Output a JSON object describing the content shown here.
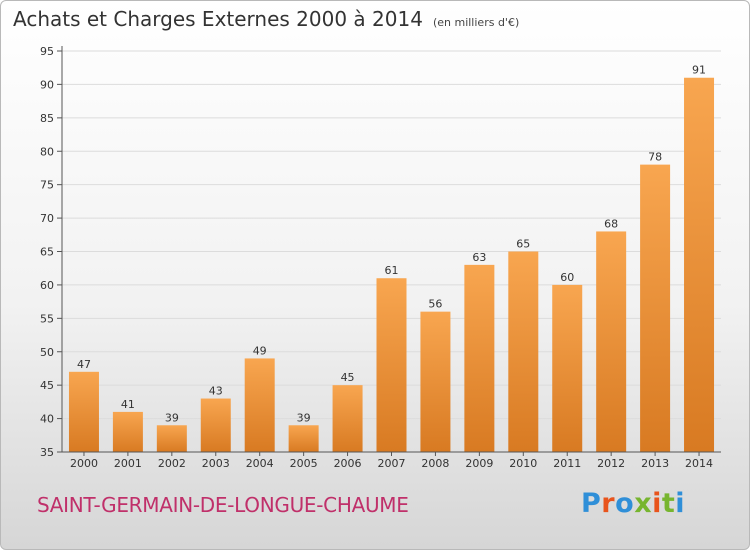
{
  "header": {
    "title": "Achats et Charges Externes 2000 à 2014",
    "unit": "(en milliers d'€)"
  },
  "footer": {
    "city": "SAINT-GERMAIN-DE-LONGUE-CHAUME",
    "logo": "Proxiti"
  },
  "colors": {
    "bar_light": "#f8a650",
    "bar_dark": "#d87a22",
    "city_text": "#c0306a",
    "logo_letters": [
      "#2f8fd8",
      "#e8541c",
      "#2f8fd8",
      "#77b52f",
      "#e8541c",
      "#77b52f",
      "#2f8fd8"
    ]
  },
  "chart_data": {
    "type": "bar",
    "title": "Achats et Charges Externes 2000 à 2014",
    "xlabel": "",
    "ylabel": "",
    "categories": [
      "2000",
      "2001",
      "2002",
      "2003",
      "2004",
      "2005",
      "2006",
      "2007",
      "2008",
      "2009",
      "2010",
      "2011",
      "2012",
      "2013",
      "2014"
    ],
    "values": [
      47,
      41,
      39,
      43,
      49,
      39,
      45,
      61,
      56,
      63,
      65,
      60,
      68,
      78,
      91
    ],
    "ylim": [
      35,
      95
    ],
    "yticks": [
      35,
      40,
      45,
      50,
      55,
      60,
      65,
      70,
      75,
      80,
      85,
      90,
      95
    ],
    "grid": true,
    "legend": "none"
  }
}
